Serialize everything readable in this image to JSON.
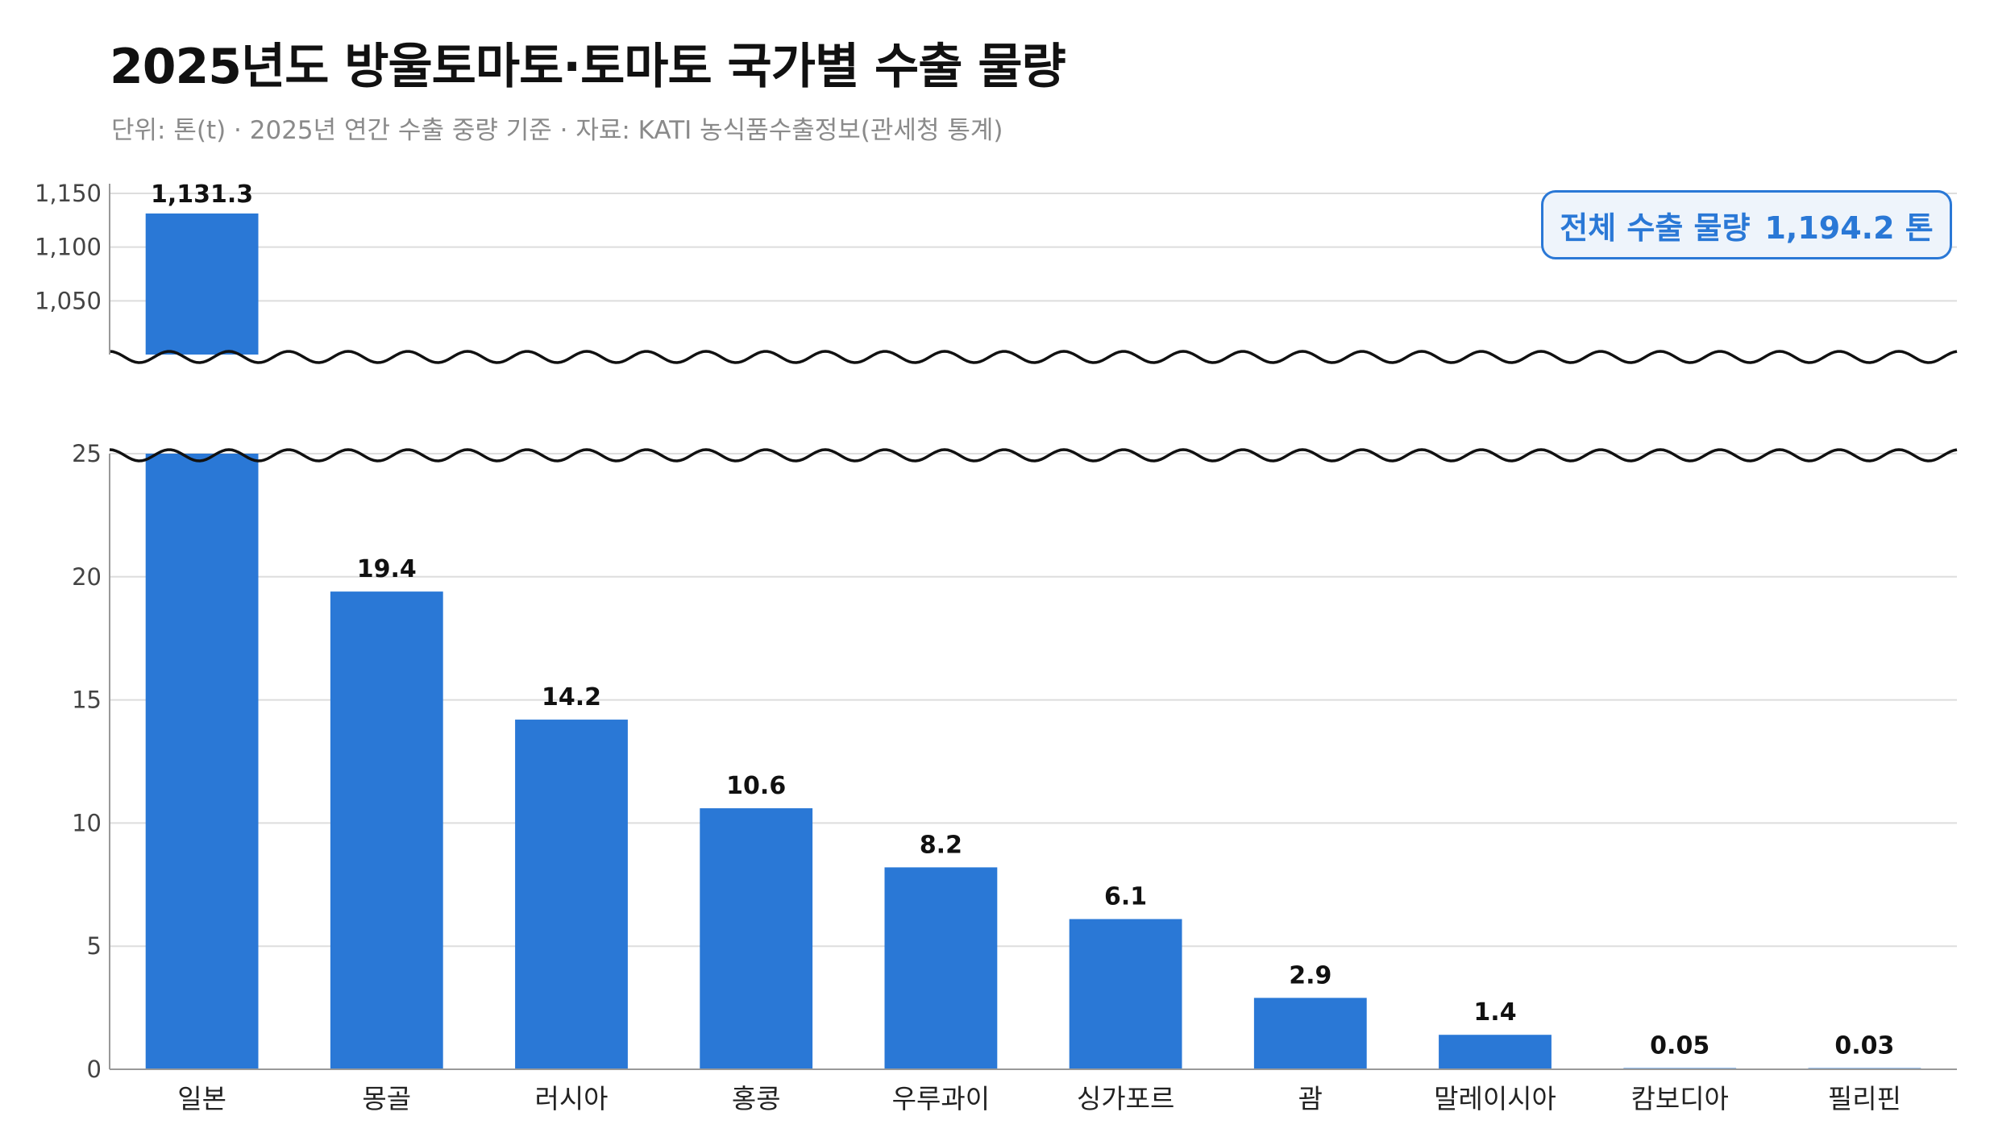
{
  "title": "2025년도 방울토마토·토마토 국가별 수출 물량",
  "subtitle": "단위: 톤(t)  ·  2025년 연간 수출 중량 기준  ·  자료: KATI 농식품수출정보(관세청 통계)",
  "total_box": {
    "label": "전체 수출 물량",
    "value": "1,194.2 톤"
  },
  "colors": {
    "bar": "#2a78d6",
    "accent": "#2a78d6",
    "grid": "#dddddd",
    "axis": "#999999"
  },
  "chart_data": {
    "type": "bar",
    "title": "2025년도 방울토마토·토마토 국가별 수출 물량",
    "xlabel": "",
    "ylabel": "",
    "categories": [
      "일본",
      "몽골",
      "러시아",
      "홍콩",
      "우루과이",
      "싱가포르",
      "괌",
      "말레이시아",
      "캄보디아",
      "필리핀"
    ],
    "values": [
      1131.3,
      19.4,
      14.2,
      10.6,
      8.2,
      6.1,
      2.9,
      1.4,
      0.05,
      0.03
    ],
    "value_labels": [
      "1,131.3",
      "19.4",
      "14.2",
      "10.6",
      "8.2",
      "6.1",
      "2.9",
      "1.4",
      "0.05",
      "0.03"
    ],
    "broken_axis": true,
    "lower_segment": {
      "ylim": [
        0,
        25
      ],
      "ticks": [
        "0",
        "5",
        "10",
        "15",
        "20",
        "25"
      ],
      "tick_values": [
        0,
        5,
        10,
        15,
        20,
        25
      ]
    },
    "upper_segment": {
      "ylim": [
        1000,
        1165
      ],
      "ticks": [
        "1,050",
        "1,100",
        "1,150"
      ],
      "tick_values": [
        1050,
        1100,
        1150
      ]
    },
    "grid": true,
    "legend": "none"
  }
}
